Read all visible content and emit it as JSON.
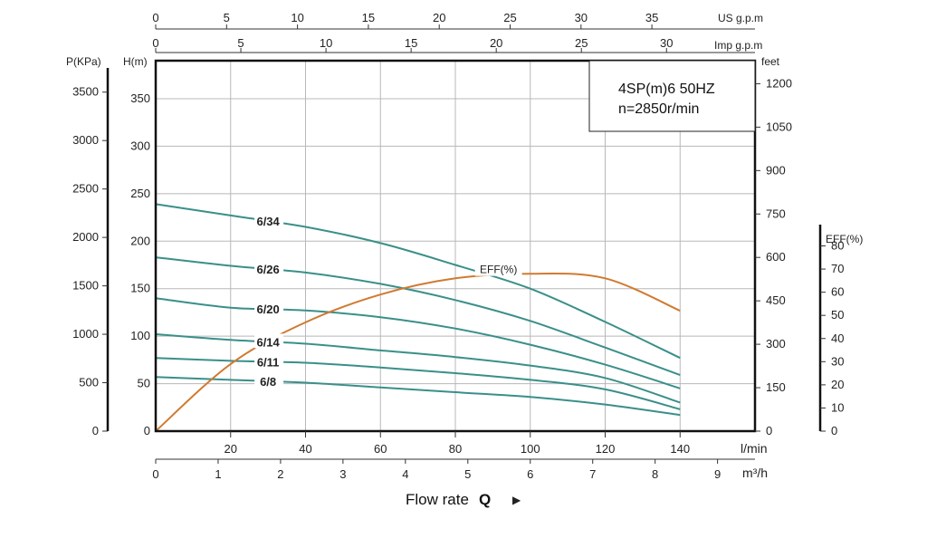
{
  "chart_data": {
    "type": "line",
    "title_line1": "4SP(m)6  50HZ",
    "title_line2": "n=2850r/min",
    "xlabel": "Flow rate",
    "xlabel_bold": "Q",
    "xlabel_arrow": "▶",
    "x_unit": "l/min",
    "x_range": [
      0,
      160
    ],
    "y_range": [
      0,
      390
    ],
    "grid": true,
    "axes": {
      "lpm_ticks": [
        "20",
        "40",
        "60",
        "80",
        "100",
        "120",
        "140"
      ],
      "m3h_unit": "m³/h",
      "m3h_ticks": [
        "0",
        "1",
        "2",
        "3",
        "4",
        "5",
        "6",
        "7",
        "8",
        "9"
      ],
      "usgpm_unit": "US g.p.m",
      "usgpm_ticks": [
        "0",
        "5",
        "10",
        "15",
        "20",
        "25",
        "30",
        "35"
      ],
      "impgpm_unit": "Imp g.p.m",
      "impgpm_ticks": [
        "0",
        "5",
        "10",
        "15",
        "20",
        "25",
        "30"
      ],
      "pressure_unit": "P(KPa)",
      "pressure_ticks": [
        "0",
        "500",
        "1000",
        "1500",
        "2000",
        "2500",
        "3000",
        "3500"
      ],
      "head_unit": "H(m)",
      "head_ticks": [
        "0",
        "50",
        "100",
        "150",
        "200",
        "250",
        "300",
        "350"
      ],
      "feet_unit": "feet",
      "feet_ticks": [
        "0",
        "150",
        "300",
        "450",
        "600",
        "750",
        "900",
        "1050",
        "1200"
      ],
      "eff_unit": "EFF(%)",
      "eff_ticks": [
        "0",
        "10",
        "20",
        "30",
        "40",
        "50",
        "60",
        "70",
        "80"
      ]
    },
    "series": [
      {
        "name": "6/34",
        "color": "#3a8f8a",
        "x": [
          0,
          20,
          40,
          60,
          80,
          100,
          120,
          140
        ],
        "y": [
          239,
          227,
          215,
          198,
          175,
          150,
          115,
          77
        ]
      },
      {
        "name": "6/26",
        "color": "#3a8f8a",
        "x": [
          0,
          20,
          40,
          60,
          80,
          100,
          120,
          140
        ],
        "y": [
          183,
          174,
          167,
          155,
          138,
          116,
          88,
          59
        ]
      },
      {
        "name": "6/20",
        "color": "#3a8f8a",
        "x": [
          0,
          20,
          40,
          60,
          80,
          100,
          120,
          140
        ],
        "y": [
          140,
          130,
          127,
          120,
          108,
          91,
          70,
          45
        ]
      },
      {
        "name": "6/14",
        "color": "#3a8f8a",
        "x": [
          0,
          20,
          40,
          60,
          80,
          100,
          120,
          140
        ],
        "y": [
          102,
          96,
          92,
          85,
          78,
          69,
          56,
          30
        ]
      },
      {
        "name": "6/11",
        "color": "#3a8f8a",
        "x": [
          0,
          20,
          40,
          60,
          80,
          100,
          120,
          140
        ],
        "y": [
          77,
          74,
          72,
          67,
          61,
          54,
          44,
          23
        ]
      },
      {
        "name": "6/8",
        "color": "#3a8f8a",
        "x": [
          0,
          20,
          40,
          60,
          80,
          100,
          120,
          140
        ],
        "y": [
          57,
          54,
          51,
          46,
          41,
          36,
          28,
          17
        ]
      }
    ],
    "efficiency": {
      "name": "EFF(%)",
      "color": "#d07a30",
      "x": [
        0,
        20,
        40,
        60,
        80,
        100,
        120,
        140
      ],
      "y": [
        0,
        29,
        47,
        59,
        66,
        68,
        66,
        52
      ]
    }
  }
}
